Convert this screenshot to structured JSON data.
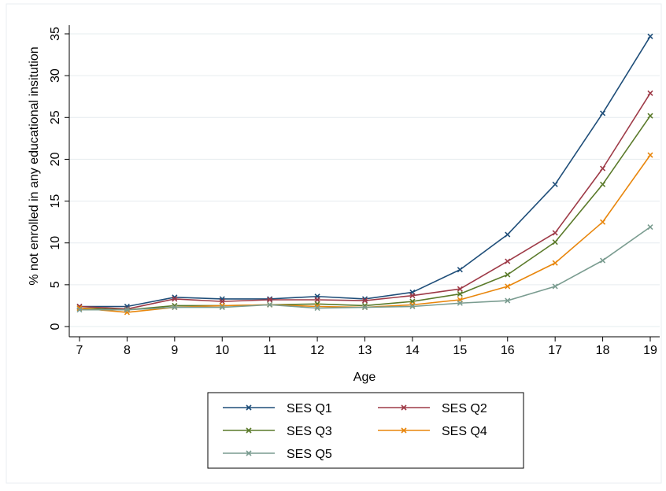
{
  "chart_data": {
    "type": "line",
    "title": "",
    "xlabel": "Age",
    "ylabel": "% not enrolled in any educational insitution",
    "x": [
      7,
      8,
      9,
      10,
      11,
      12,
      13,
      14,
      15,
      16,
      17,
      18,
      19
    ],
    "xlim": [
      7,
      19
    ],
    "ylim": [
      0,
      35
    ],
    "x_ticks": [
      "7",
      "8",
      "9",
      "10",
      "11",
      "12",
      "13",
      "14",
      "15",
      "16",
      "17",
      "18",
      "19"
    ],
    "y_ticks": [
      "0",
      "5",
      "10",
      "15",
      "20",
      "25",
      "30",
      "35"
    ],
    "grid": "horizontal",
    "legend_position": "bottom",
    "marker": "x",
    "series": [
      {
        "name": "SES Q1",
        "color": "#1f4e79",
        "values": [
          2.4,
          2.4,
          3.5,
          3.3,
          3.3,
          3.6,
          3.3,
          4.1,
          6.8,
          11.0,
          17.0,
          25.5,
          34.7
        ]
      },
      {
        "name": "SES Q2",
        "color": "#9e3a47",
        "values": [
          2.4,
          2.1,
          3.3,
          3.0,
          3.2,
          3.2,
          3.1,
          3.7,
          4.5,
          7.8,
          11.2,
          18.9,
          27.9
        ]
      },
      {
        "name": "SES Q3",
        "color": "#5a7a2a",
        "values": [
          2.2,
          2.0,
          2.5,
          2.5,
          2.6,
          2.7,
          2.5,
          3.0,
          3.9,
          6.2,
          10.1,
          17.0,
          25.2
        ]
      },
      {
        "name": "SES Q4",
        "color": "#e8860c",
        "values": [
          2.2,
          1.7,
          2.3,
          2.5,
          2.6,
          2.4,
          2.3,
          2.6,
          3.2,
          4.8,
          7.6,
          12.5,
          20.5
        ]
      },
      {
        "name": "SES Q5",
        "color": "#7a9c90",
        "values": [
          2.0,
          2.0,
          2.3,
          2.3,
          2.6,
          2.2,
          2.3,
          2.4,
          2.8,
          3.1,
          4.8,
          7.9,
          11.9
        ]
      }
    ]
  }
}
